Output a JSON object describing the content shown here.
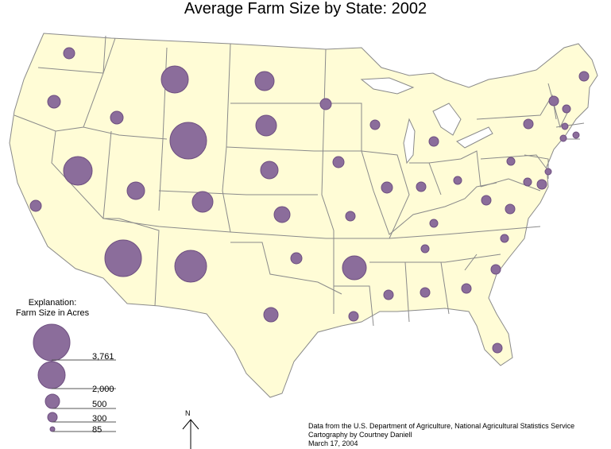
{
  "title": "Average Farm Size by State: 2002",
  "colors": {
    "land": "#FFFCD6",
    "border": "#8a8a8a",
    "bubble": "#8B6D9B",
    "bubble_stroke": "#6e4f80"
  },
  "legend": {
    "title_line1": "Explanation:",
    "title_line2": "Farm Size in Acres",
    "items": [
      {
        "label": "3,761",
        "value": 3761
      },
      {
        "label": "2,000",
        "value": 2000
      },
      {
        "label": "500",
        "value": 500
      },
      {
        "label": "300",
        "value": 300
      },
      {
        "label": "85",
        "value": 85
      }
    ]
  },
  "north_arrow": {
    "label": "N"
  },
  "credits": {
    "line1": "Data from the U.S. Department of Agriculture, National Agricultural Statistics Service",
    "line2": "Cartography by Courtney Daniell",
    "line3": "March 17, 2004"
  }
}
